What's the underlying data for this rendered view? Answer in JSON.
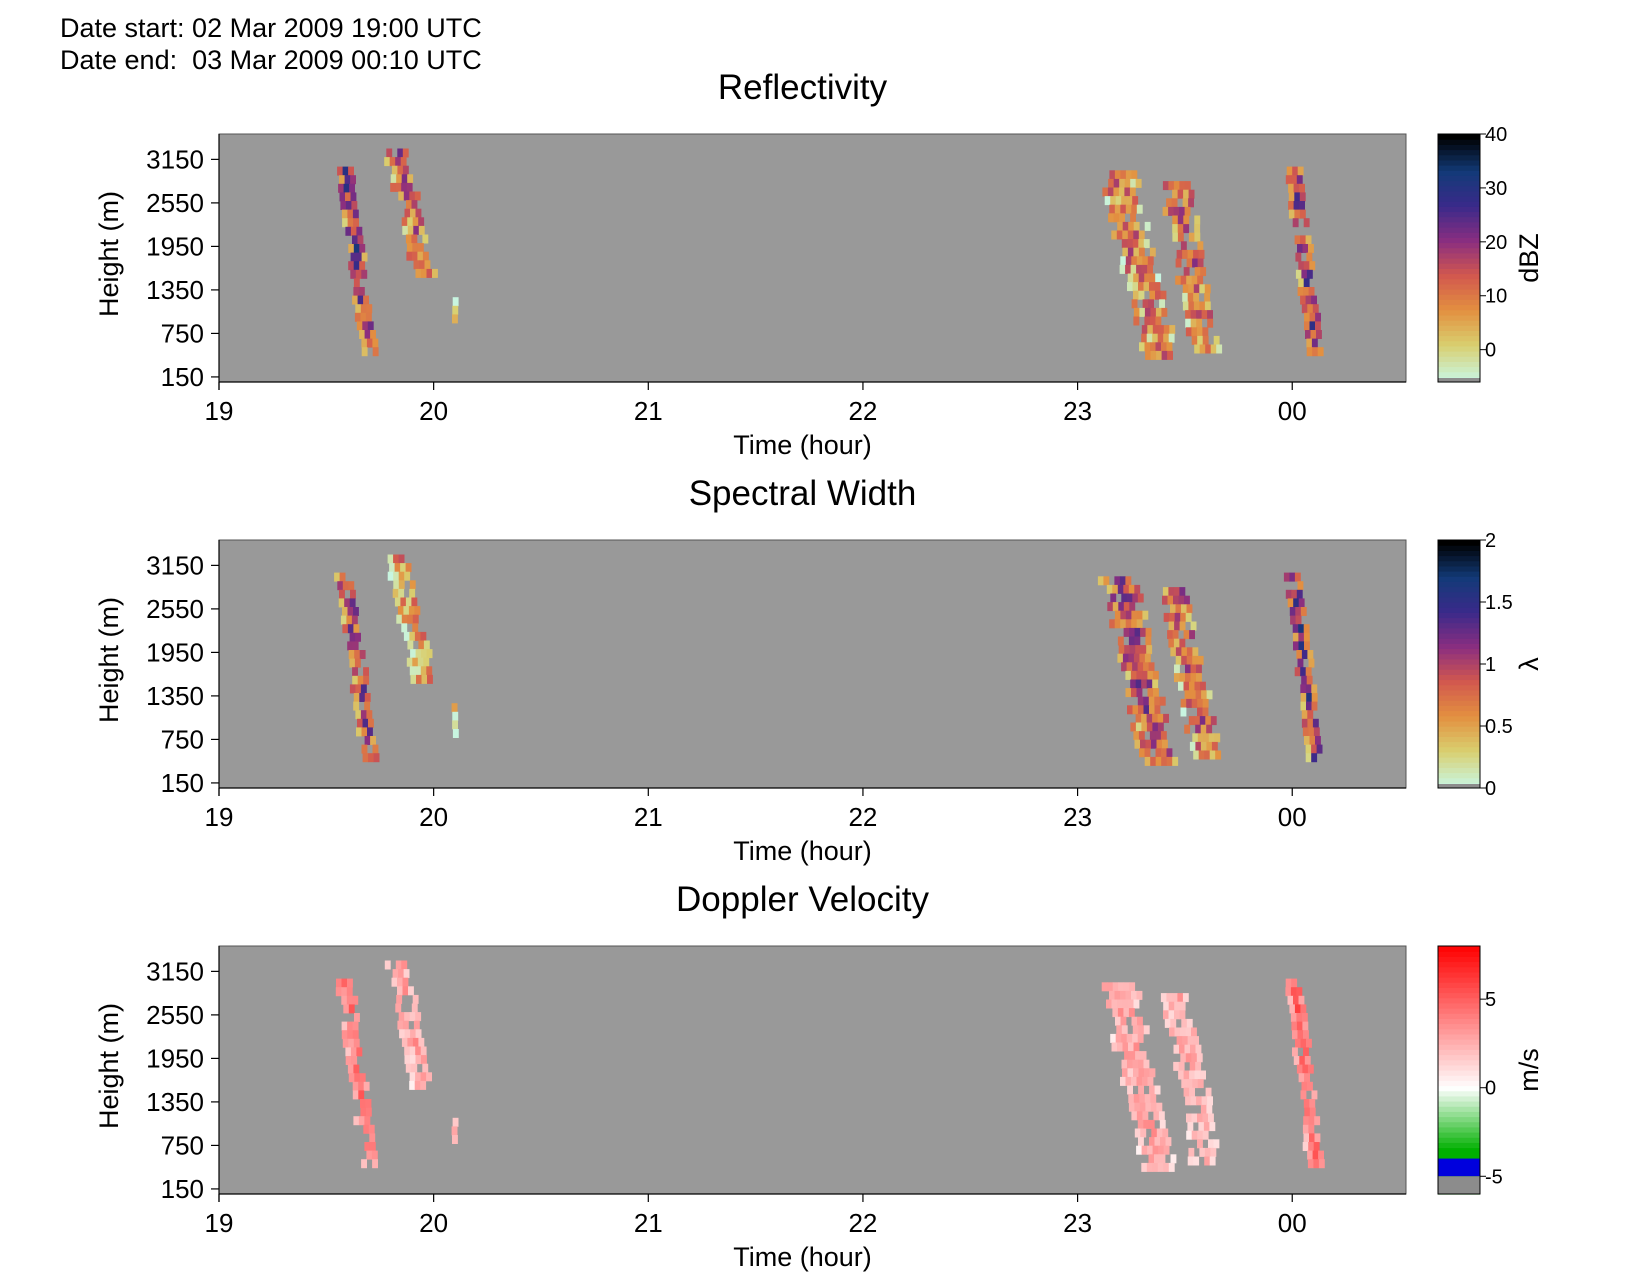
{
  "header": {
    "date_start": "Date start: 02 Mar 2009 19:00 UTC",
    "date_end": "Date end:  03 Mar 2009 00:10 UTC"
  },
  "chart_data": [
    {
      "type": "heatmap",
      "title": "Reflectivity",
      "xlabel": "Time (hour)",
      "ylabel": "Height (m)",
      "x_ticks": [
        "19",
        "20",
        "21",
        "22",
        "23",
        "00"
      ],
      "x_tick_hours": [
        19,
        20,
        21,
        22,
        23,
        24
      ],
      "xlim_hours": [
        19,
        24.53
      ],
      "y_ticks": [
        150,
        750,
        1350,
        1950,
        2550,
        3150
      ],
      "ylim": [
        80,
        3500
      ],
      "colorbar": {
        "label": "dBZ",
        "ticks": [
          0,
          10,
          20,
          30,
          40
        ],
        "range": [
          -6,
          40
        ],
        "colors": [
          "#c8f5e0",
          "#d9cf6f",
          "#e39040",
          "#d2584e",
          "#8a2e80",
          "#3a2a8a",
          "#123a78",
          "#000000"
        ],
        "underflow_color": "#8c8c8c"
      },
      "background_color": "#999999",
      "echo_regions": [
        {
          "t_top": 19.58,
          "t_bottom": 19.7,
          "h_top": 3050,
          "h_bottom": 500,
          "width_hours": 0.065,
          "level": 0.6
        },
        {
          "t_top": 19.82,
          "t_bottom": 19.95,
          "h_top": 3300,
          "h_bottom": 1600,
          "width_hours": 0.09,
          "level": 0.4
        },
        {
          "t_top": 20.1,
          "t_bottom": 20.1,
          "h_top": 1250,
          "h_bottom": 800,
          "width_hours": 0.025,
          "level": 0.05
        },
        {
          "t_top": 23.18,
          "t_bottom": 23.37,
          "h_top": 3000,
          "h_bottom": 500,
          "width_hours": 0.13,
          "level": 0.35
        },
        {
          "t_top": 23.45,
          "t_bottom": 23.6,
          "h_top": 2850,
          "h_bottom": 500,
          "width_hours": 0.12,
          "level": 0.4
        },
        {
          "t_top": 24.0,
          "t_bottom": 24.1,
          "h_top": 3050,
          "h_bottom": 500,
          "width_hours": 0.06,
          "level": 0.55
        }
      ]
    },
    {
      "type": "heatmap",
      "title": "Spectral Width",
      "xlabel": "Time (hour)",
      "ylabel": "Height (m)",
      "x_ticks": [
        "19",
        "20",
        "21",
        "22",
        "23",
        "00"
      ],
      "x_tick_hours": [
        19,
        20,
        21,
        22,
        23,
        24
      ],
      "xlim_hours": [
        19,
        24.53
      ],
      "y_ticks": [
        150,
        750,
        1350,
        1950,
        2550,
        3150
      ],
      "ylim": [
        80,
        3500
      ],
      "colorbar": {
        "label": "λ",
        "ticks": [
          0,
          0.5,
          1,
          1.5,
          2
        ],
        "tick_labels": [
          "0",
          "0.5",
          "1",
          "1.5",
          "2"
        ],
        "range": [
          0,
          2
        ],
        "colors": [
          "#c8f5e0",
          "#d9cf6f",
          "#e39040",
          "#d2584e",
          "#8a2e80",
          "#3a2a8a",
          "#123a78",
          "#000000"
        ],
        "underflow_color": "#8c8c8c"
      },
      "background_color": "#999999",
      "echo_regions": [
        {
          "t_top": 19.58,
          "t_bottom": 19.7,
          "h_top": 3050,
          "h_bottom": 500,
          "width_hours": 0.065,
          "level": 0.5
        },
        {
          "t_top": 19.82,
          "t_bottom": 19.95,
          "h_top": 3300,
          "h_bottom": 1600,
          "width_hours": 0.09,
          "level": 0.3
        },
        {
          "t_top": 20.1,
          "t_bottom": 20.1,
          "h_top": 1250,
          "h_bottom": 800,
          "width_hours": 0.025,
          "level": 0.05
        },
        {
          "t_top": 23.18,
          "t_bottom": 23.37,
          "h_top": 3000,
          "h_bottom": 500,
          "width_hours": 0.13,
          "level": 0.5
        },
        {
          "t_top": 23.45,
          "t_bottom": 23.6,
          "h_top": 2850,
          "h_bottom": 500,
          "width_hours": 0.12,
          "level": 0.4
        },
        {
          "t_top": 24.0,
          "t_bottom": 24.1,
          "h_top": 3050,
          "h_bottom": 500,
          "width_hours": 0.06,
          "level": 0.6
        }
      ]
    },
    {
      "type": "heatmap",
      "title": "Doppler Velocity",
      "xlabel": "Time (hour)",
      "ylabel": "Height (m)",
      "x_ticks": [
        "19",
        "20",
        "21",
        "22",
        "23",
        "00"
      ],
      "x_tick_hours": [
        19,
        20,
        21,
        22,
        23,
        24
      ],
      "xlim_hours": [
        19,
        24.53
      ],
      "y_ticks": [
        150,
        750,
        1350,
        1950,
        2550,
        3150
      ],
      "ylim": [
        80,
        3500
      ],
      "colorbar": {
        "label": "m/s",
        "ticks": [
          -5,
          0,
          5
        ],
        "range": [
          -6,
          8
        ],
        "colors": [
          "#00b000",
          "#ffffff",
          "#ff0000"
        ],
        "color_positions": [
          -3.5,
          0,
          8
        ],
        "negative_band_color": "#0000dd",
        "negative_band_range": [
          -5,
          -4
        ],
        "underflow_color": "#8c8c8c"
      },
      "background_color": "#999999",
      "echo_regions": [
        {
          "t_top": 19.58,
          "t_bottom": 19.7,
          "h_top": 3050,
          "h_bottom": 500,
          "width_hours": 0.065,
          "level": 0.55
        },
        {
          "t_top": 19.82,
          "t_bottom": 19.95,
          "h_top": 3300,
          "h_bottom": 1600,
          "width_hours": 0.09,
          "level": 0.35
        },
        {
          "t_top": 20.1,
          "t_bottom": 20.1,
          "h_top": 1250,
          "h_bottom": 800,
          "width_hours": 0.025,
          "level": 0.45
        },
        {
          "t_top": 23.18,
          "t_bottom": 23.37,
          "h_top": 3000,
          "h_bottom": 500,
          "width_hours": 0.13,
          "level": 0.35
        },
        {
          "t_top": 23.45,
          "t_bottom": 23.6,
          "h_top": 2850,
          "h_bottom": 500,
          "width_hours": 0.12,
          "level": 0.3
        },
        {
          "t_top": 24.0,
          "t_bottom": 24.1,
          "h_top": 3050,
          "h_bottom": 500,
          "width_hours": 0.06,
          "level": 0.6
        }
      ]
    }
  ]
}
